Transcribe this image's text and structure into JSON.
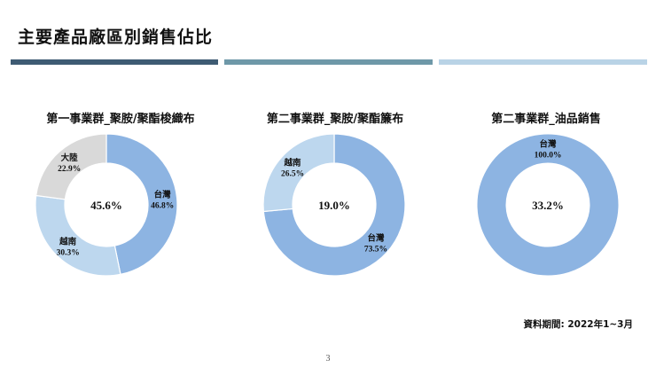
{
  "page_title": "主要產品廠區別銷售佔比",
  "source_note": "資料期間: 2022年1~3月",
  "page_number": "3",
  "chart_data": [
    {
      "type": "donut",
      "title": "第一事業群_聚胺/聚酯梭織布",
      "center_value": "45.6%",
      "slices": [
        {
          "name": "台灣",
          "value": 46.8,
          "label": "46.8%",
          "color": "#8db4e2"
        },
        {
          "name": "越南",
          "value": 30.3,
          "label": "30.3%",
          "color": "#bdd7ee"
        },
        {
          "name": "大陸",
          "value": 22.9,
          "label": "22.9%",
          "color": "#d9d9d9"
        }
      ]
    },
    {
      "type": "donut",
      "title": "第二事業群_聚胺/聚酯簾布",
      "center_value": "19.0%",
      "slices": [
        {
          "name": "台灣",
          "value": 73.5,
          "label": "73.5%",
          "color": "#8db4e2"
        },
        {
          "name": "越南",
          "value": 26.5,
          "label": "26.5%",
          "color": "#bdd7ee"
        }
      ]
    },
    {
      "type": "donut",
      "title": "第二事業群_油品銷售",
      "center_value": "33.2%",
      "slices": [
        {
          "name": "台灣",
          "value": 100.0,
          "label": "100.0%",
          "color": "#8db4e2"
        }
      ]
    }
  ]
}
